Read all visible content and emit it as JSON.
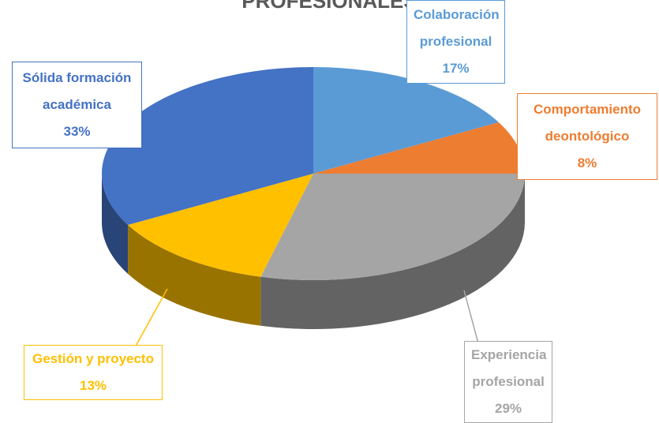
{
  "chart_data": {
    "type": "pie",
    "title": "PROFESIONALES",
    "categories": [
      "Colaboración profesional",
      "Comportamiento deontológico",
      "Experiencia profesional",
      "Gestión y proyecto",
      "Sólida formación académica"
    ],
    "values": [
      17,
      8,
      29,
      13,
      33
    ],
    "value_labels": [
      "17%",
      "8%",
      "29%",
      "13%",
      "33%"
    ],
    "colors": [
      "#5b9bd5",
      "#ed7d31",
      "#a5a5a5",
      "#ffc000",
      "#4472c4"
    ]
  }
}
